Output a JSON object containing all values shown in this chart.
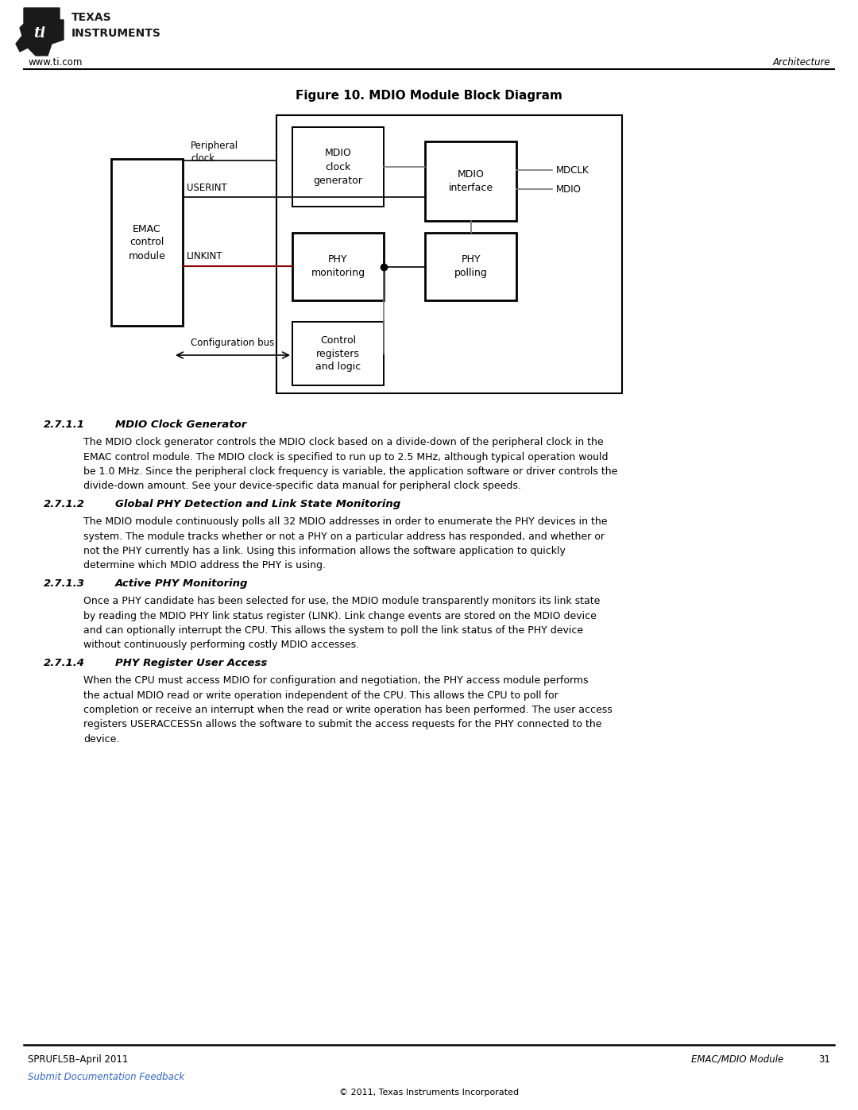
{
  "title": "Figure 10. MDIO Module Block Diagram",
  "header_left": "www.ti.com",
  "header_right": "Architecture",
  "footer_left": "SPRUFL5B–April 2011",
  "footer_link": "Submit Documentation Feedback",
  "footer_right": "EMAC/MDIO Module",
  "footer_page": "31",
  "footer_center": "© 2011, Texas Instruments Incorporated",
  "section_271_num": "2.7.1.1",
  "section_271_head": "MDIO Clock Generator",
  "section_271_body": "The MDIO clock generator controls the MDIO clock based on a divide-down of the peripheral clock in the\nEMAC control module. The MDIO clock is specified to run up to 2.5 MHz, although typical operation would\nbe 1.0 MHz. Since the peripheral clock frequency is variable, the application software or driver controls the\ndivide-down amount. See your device-specific data manual for peripheral clock speeds.",
  "section_272_num": "2.7.1.2",
  "section_272_head": "Global PHY Detection and Link State Monitoring",
  "section_272_body": "The MDIO module continuously polls all 32 MDIO addresses in order to enumerate the PHY devices in the\nsystem. The module tracks whether or not a PHY on a particular address has responded, and whether or\nnot the PHY currently has a link. Using this information allows the software application to quickly\ndetermine which MDIO address the PHY is using.",
  "section_273_num": "2.7.1.3",
  "section_273_head": "Active PHY Monitoring",
  "section_273_body": "Once a PHY candidate has been selected for use, the MDIO module transparently monitors its link state\nby reading the MDIO PHY link status register (LINK). Link change events are stored on the MDIO device\nand can optionally interrupt the CPU. This allows the system to poll the link status of the PHY device\nwithout continuously performing costly MDIO accesses.",
  "section_274_num": "2.7.1.4",
  "section_274_head": "PHY Register User Access",
  "section_274_body_pre": "When the CPU must access MDIO for configuration and negotiation, the PHY access module performs\nthe actual MDIO read or write operation independent of the CPU. This allows the CPU to poll for\ncompletion or receive an interrupt when the read or write operation has been performed. The user access\nregisters ",
  "section_274_italic": "USERACCESSn",
  "section_274_body_post": " allows the software to submit the access requests for the PHY connected to the\ndevice."
}
